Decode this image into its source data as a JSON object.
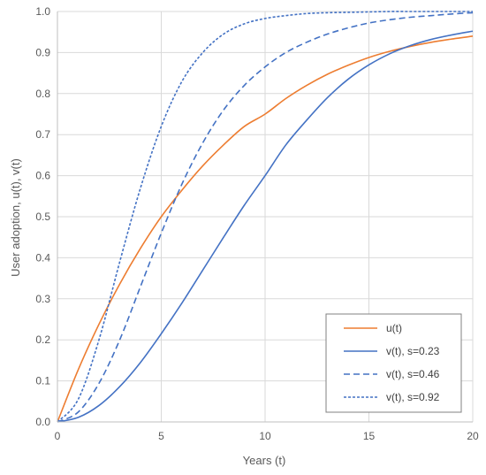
{
  "chart_data": {
    "type": "line",
    "title": "",
    "xlabel": "Years (t)",
    "ylabel": "User adoption, u(t), v(t)",
    "xlim": [
      0,
      20
    ],
    "ylim": [
      0,
      1.0
    ],
    "x_ticks": [
      "0",
      "5",
      "10",
      "15",
      "20"
    ],
    "y_ticks": [
      "0.0",
      "0.1",
      "0.2",
      "0.3",
      "0.4",
      "0.5",
      "0.6",
      "0.7",
      "0.8",
      "0.9",
      "1.0"
    ],
    "grid": true,
    "legend_position": "bottom-right",
    "x": [
      0,
      1,
      2,
      3,
      4,
      5,
      6,
      7,
      8,
      9,
      10,
      11,
      12,
      13,
      14,
      15,
      16,
      17,
      18,
      19,
      20
    ],
    "series": [
      {
        "name": "u(t)",
        "color": "#ED7D31",
        "dash": "solid",
        "values": [
          0,
          0.127,
          0.238,
          0.336,
          0.423,
          0.5,
          0.565,
          0.624,
          0.675,
          0.72,
          0.75,
          0.788,
          0.82,
          0.847,
          0.869,
          0.888,
          0.903,
          0.915,
          0.925,
          0.933,
          0.94
        ]
      },
      {
        "name": "v(t), s=0.23",
        "color": "#4472C4",
        "dash": "solid",
        "values": [
          0,
          0.011,
          0.04,
          0.086,
          0.145,
          0.215,
          0.29,
          0.37,
          0.45,
          0.528,
          0.6,
          0.675,
          0.735,
          0.79,
          0.835,
          0.87,
          0.897,
          0.917,
          0.932,
          0.943,
          0.952
        ]
      },
      {
        "name": "v(t), s=0.46",
        "color": "#4472C4",
        "dash": "dashed",
        "values": [
          0,
          0.024,
          0.094,
          0.2,
          0.33,
          0.46,
          0.58,
          0.68,
          0.76,
          0.82,
          0.865,
          0.9,
          0.925,
          0.945,
          0.96,
          0.972,
          0.98,
          0.986,
          0.99,
          0.994,
          0.997
        ]
      },
      {
        "name": "v(t), s=0.92",
        "color": "#4472C4",
        "dash": "dotted",
        "values": [
          0,
          0.055,
          0.2,
          0.39,
          0.57,
          0.72,
          0.83,
          0.9,
          0.945,
          0.97,
          0.983,
          0.99,
          0.995,
          0.997,
          0.998,
          0.999,
          1.0,
          1.0,
          1.0,
          1.0,
          1.0
        ]
      }
    ]
  }
}
